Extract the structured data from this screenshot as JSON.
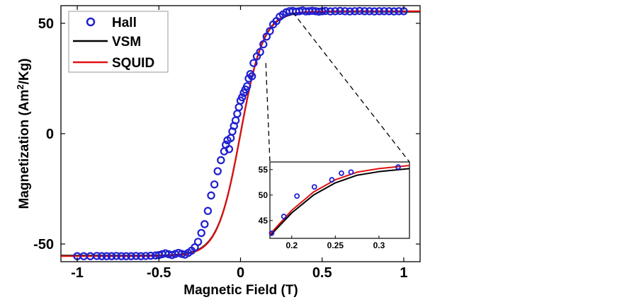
{
  "chart_data": {
    "type": "scatter",
    "main": {
      "xlabel": "Magnetic Field (T)",
      "ylabel_prefix": "Magnetization (Am",
      "ylabel_sup": "2",
      "ylabel_suffix": "/Kg)",
      "xlim": [
        -1.1,
        1.1
      ],
      "ylim": [
        -58,
        58
      ],
      "x_ticks": [
        -1,
        -0.5,
        0,
        0.5,
        1
      ],
      "x_tick_labels": [
        "-1",
        "-0.5",
        "0",
        "0.5",
        "1"
      ],
      "y_ticks": [
        -50,
        0,
        50
      ],
      "y_tick_labels": [
        "-50",
        "0",
        "50"
      ],
      "grid": false,
      "legend_position": "top-left"
    },
    "legend": [
      {
        "name": "Hall",
        "kind": "marker",
        "color": "#1f1fd0"
      },
      {
        "name": "VSM",
        "kind": "line",
        "color": "#000000"
      },
      {
        "name": "SQUID",
        "kind": "line",
        "color": "#e01010"
      }
    ],
    "model": {
      "saturation": 55.5,
      "field_scale": 0.14
    },
    "series": [
      {
        "name": "Hall",
        "x": [
          -1.0,
          -0.96,
          -0.92,
          -0.88,
          -0.85,
          -0.82,
          -0.79,
          -0.76,
          -0.73,
          -0.7,
          -0.67,
          -0.64,
          -0.61,
          -0.58,
          -0.55,
          -0.52,
          -0.5,
          -0.48,
          -0.46,
          -0.44,
          -0.42,
          -0.4,
          -0.38,
          -0.36,
          -0.34,
          -0.32,
          -0.3,
          -0.28,
          -0.26,
          -0.24,
          -0.22,
          -0.2,
          -0.18,
          -0.16,
          -0.14,
          -0.12,
          -0.1,
          -0.09,
          -0.08,
          -0.07,
          -0.06,
          -0.05,
          -0.04,
          -0.03,
          -0.02,
          -0.01,
          0.0,
          0.01,
          0.02,
          0.03,
          0.04,
          0.05,
          0.06,
          0.07,
          0.08,
          0.1,
          0.12,
          0.14,
          0.16,
          0.18,
          0.2,
          0.22,
          0.24,
          0.26,
          0.28,
          0.3,
          0.32,
          0.34,
          0.36,
          0.38,
          0.4,
          0.42,
          0.44,
          0.46,
          0.48,
          0.5,
          0.52,
          0.55,
          0.58,
          0.61,
          0.64,
          0.67,
          0.7,
          0.73,
          0.76,
          0.79,
          0.82,
          0.85,
          0.88,
          0.91,
          0.94,
          0.97,
          1.0
        ],
        "y": [
          -55.5,
          -55.5,
          -55.5,
          -55.4,
          -55.5,
          -55.5,
          -55.5,
          -55.4,
          -55.5,
          -55.5,
          -55.5,
          -55.4,
          -55.5,
          -55.4,
          -55.3,
          -55.2,
          -55.0,
          -54.6,
          -54.2,
          -54.6,
          -55.0,
          -54.5,
          -54.0,
          -54.5,
          -54.8,
          -54.0,
          -53.0,
          -51.5,
          -49.0,
          -45.0,
          -41.0,
          -35.0,
          -28.0,
          -23.0,
          -17.0,
          -12.0,
          -8.0,
          -5.0,
          -3.0,
          -7.0,
          -2.0,
          1.0,
          3.5,
          6.0,
          9.0,
          12.0,
          15.0,
          16.5,
          18.5,
          20.0,
          21.5,
          25.0,
          27.0,
          26.0,
          32.0,
          35.0,
          37.0,
          40.5,
          44.0,
          46.5,
          49.5,
          51.0,
          53.0,
          54.0,
          55.0,
          55.5,
          55.6,
          55.3,
          55.5,
          55.8,
          55.4,
          55.5,
          55.7,
          55.5,
          55.3,
          55.5,
          55.6,
          55.4,
          55.5,
          55.6,
          55.5,
          55.4,
          55.5,
          55.6,
          55.5,
          55.5,
          55.4,
          55.5,
          55.5,
          55.5,
          55.4,
          55.5,
          55.5
        ]
      },
      {
        "name": "VSM",
        "model": "tanh",
        "x_range": [
          -1.1,
          1.1
        ]
      },
      {
        "name": "SQUID",
        "model": "tanh",
        "x_range": [
          -1.1,
          1.1
        ]
      }
    ],
    "inset": {
      "xlim": [
        0.175,
        0.335
      ],
      "ylim": [
        41.5,
        56.5
      ],
      "x_ticks": [
        0.2,
        0.25,
        0.3
      ],
      "x_tick_labels": [
        "0.2",
        "0.25",
        "0.3"
      ],
      "y_ticks": [
        45,
        50,
        55
      ],
      "y_tick_labels": [
        "45",
        "50",
        "55"
      ],
      "hall_points": {
        "x": [
          0.177,
          0.191,
          0.206,
          0.226,
          0.246,
          0.257,
          0.268,
          0.322
        ],
        "y": [
          42.5,
          45.8,
          49.8,
          51.6,
          53.0,
          54.3,
          54.5,
          55.5
        ]
      },
      "vsm_curve": {
        "x": [
          0.175,
          0.2,
          0.225,
          0.25,
          0.275,
          0.3,
          0.335
        ],
        "y": [
          42.0,
          46.5,
          50.0,
          52.4,
          53.9,
          54.6,
          55.2
        ]
      },
      "squid_curve": {
        "x": [
          0.175,
          0.2,
          0.225,
          0.25,
          0.275,
          0.3,
          0.335
        ],
        "y": [
          42.3,
          47.0,
          50.6,
          53.0,
          54.5,
          55.2,
          55.8
        ]
      }
    }
  }
}
